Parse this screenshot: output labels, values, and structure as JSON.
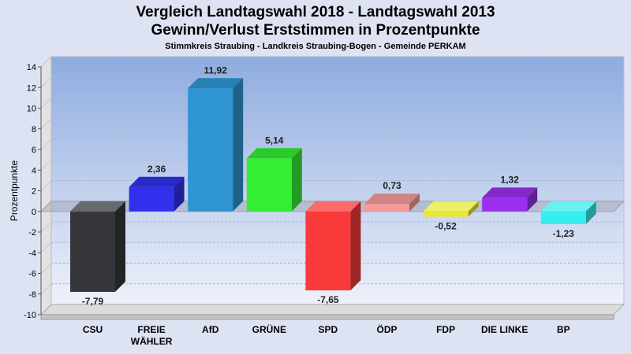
{
  "chart_data": {
    "type": "bar",
    "title": [
      "Vergleich Landtagswahl 2018 - Landtagswahl 2013",
      "Gewinn/Verlust Erststimmen in Prozentpunkte"
    ],
    "subtitle": "Stimmkreis Straubing - Landkreis Straubing-Bogen - Gemeinde PERKAM",
    "ylabel": "Prozentpunkte",
    "ylim": [
      -10,
      14
    ],
    "yticks": [
      "14",
      "12",
      "10",
      "8",
      "6",
      "4",
      "2",
      "0",
      "-2",
      "-4",
      "-6",
      "-8",
      "-10"
    ],
    "categories": [
      [
        "CSU"
      ],
      [
        "FREIE",
        "WÄHLER"
      ],
      [
        "AfD"
      ],
      [
        "GRÜNE"
      ],
      [
        "SPD"
      ],
      [
        "ÖDP"
      ],
      [
        "FDP"
      ],
      [
        "DIE LINKE"
      ],
      [
        "BP"
      ]
    ],
    "values": [
      -7.79,
      2.36,
      11.92,
      5.14,
      -7.65,
      0.73,
      -0.52,
      1.32,
      -1.23
    ],
    "value_labels": [
      "-7,79",
      "2,36",
      "11,92",
      "5,14",
      "-7,65",
      "0,73",
      "-0,52",
      "1,32",
      "-1,23"
    ],
    "colors": [
      "#36373b",
      "#3030ee",
      "#2e95d2",
      "#33ee33",
      "#f83a3a",
      "#f59a9a",
      "#e8e836",
      "#9a30ee",
      "#36eeee"
    ],
    "grid": true,
    "legend": "none",
    "style": "3d"
  }
}
